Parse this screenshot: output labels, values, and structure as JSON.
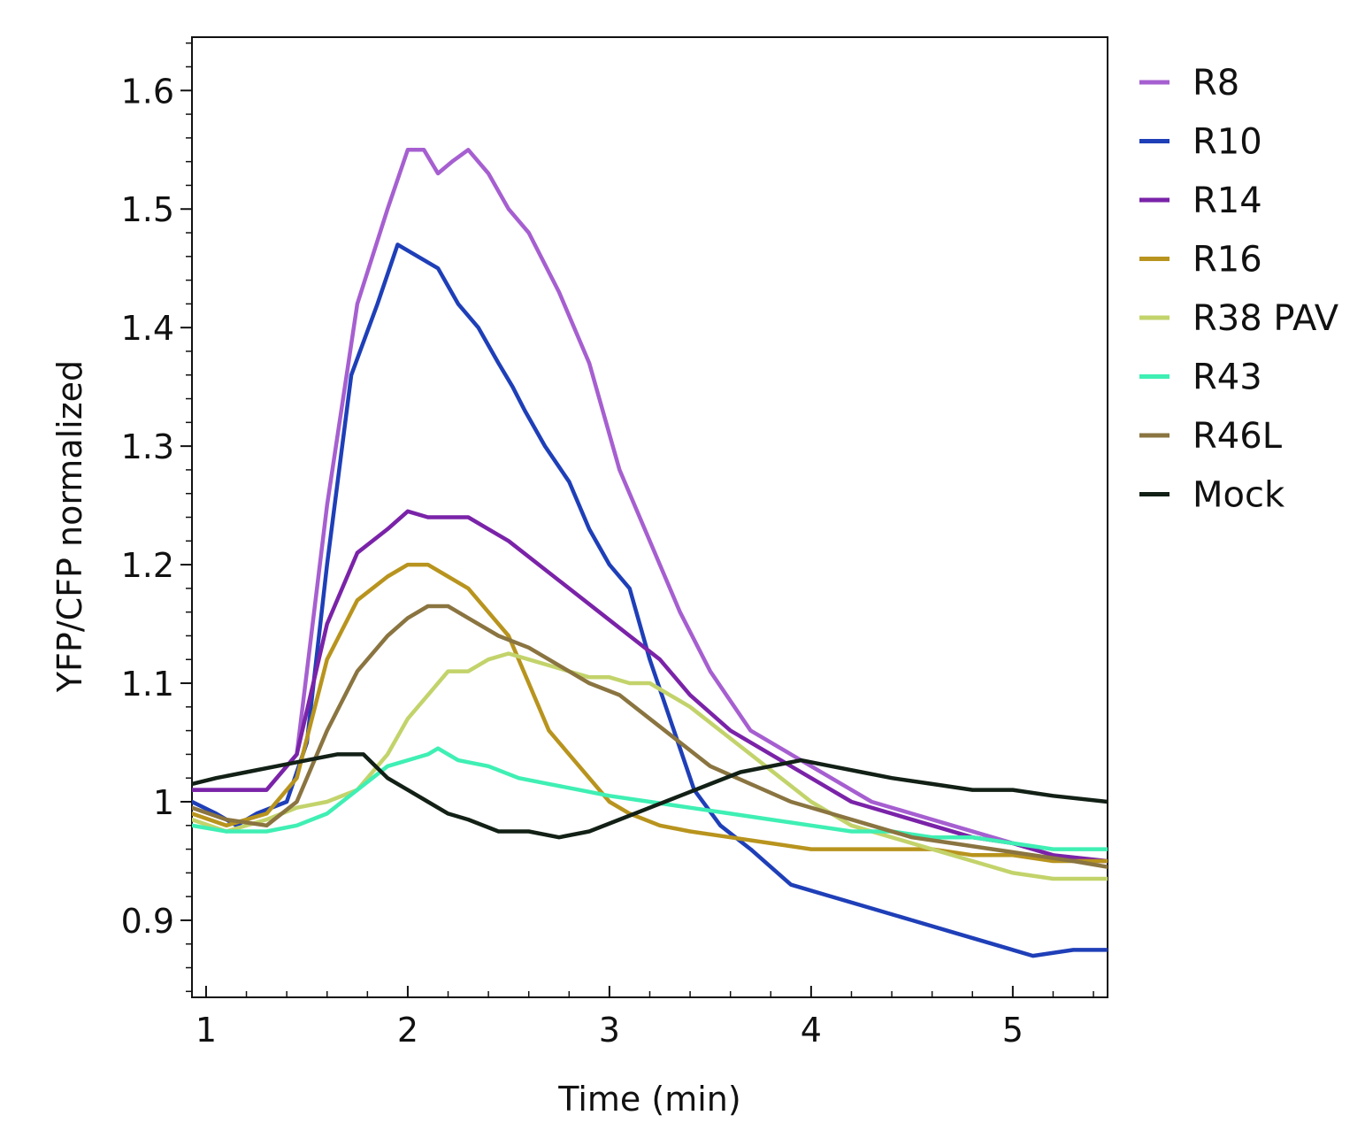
{
  "chart_data": {
    "type": "line",
    "title": "",
    "xlabel": "Time (min)",
    "ylabel": "YFP/CFP normalized",
    "xlim": [
      0.93,
      5.47
    ],
    "ylim": [
      0.835,
      1.645
    ],
    "x_ticks": [
      1,
      2,
      3,
      4,
      5
    ],
    "y_ticks": [
      0.9,
      1,
      1.1,
      1.2,
      1.3,
      1.4,
      1.5,
      1.6
    ],
    "x_tick_labels": [
      "1",
      "2",
      "3",
      "4",
      "5"
    ],
    "y_tick_labels": [
      "0.9",
      "1",
      "1.1",
      "1.2",
      "1.3",
      "1.4",
      "1.5",
      "1.6"
    ],
    "grid": false,
    "legend_position": "outside-right",
    "series": [
      {
        "name": "R8",
        "color": "#a65fd0",
        "x": [
          0.93,
          1.1,
          1.3,
          1.45,
          1.6,
          1.75,
          1.9,
          2.0,
          2.08,
          2.15,
          2.22,
          2.3,
          2.4,
          2.5,
          2.6,
          2.75,
          2.9,
          3.05,
          3.2,
          3.35,
          3.5,
          3.7,
          3.9,
          4.1,
          4.3,
          4.5,
          4.7,
          4.9,
          5.1,
          5.3,
          5.47
        ],
        "y": [
          1.01,
          1.01,
          1.01,
          1.04,
          1.25,
          1.42,
          1.5,
          1.55,
          1.55,
          1.53,
          1.54,
          1.55,
          1.53,
          1.5,
          1.48,
          1.43,
          1.37,
          1.28,
          1.22,
          1.16,
          1.11,
          1.06,
          1.04,
          1.02,
          1.0,
          0.99,
          0.98,
          0.97,
          0.96,
          0.95,
          0.95
        ]
      },
      {
        "name": "R10",
        "color": "#1f3fb8",
        "x": [
          0.93,
          1.05,
          1.15,
          1.25,
          1.4,
          1.5,
          1.6,
          1.72,
          1.85,
          1.95,
          2.05,
          2.15,
          2.25,
          2.35,
          2.45,
          2.52,
          2.58,
          2.68,
          2.8,
          2.9,
          3.0,
          3.1,
          3.2,
          3.3,
          3.42,
          3.55,
          3.7,
          3.9,
          4.1,
          4.3,
          4.5,
          4.7,
          4.9,
          5.1,
          5.3,
          5.47
        ],
        "y": [
          1.0,
          0.99,
          0.98,
          0.99,
          1.0,
          1.05,
          1.2,
          1.36,
          1.42,
          1.47,
          1.46,
          1.45,
          1.42,
          1.4,
          1.37,
          1.35,
          1.33,
          1.3,
          1.27,
          1.23,
          1.2,
          1.18,
          1.12,
          1.07,
          1.01,
          0.98,
          0.96,
          0.93,
          0.92,
          0.91,
          0.9,
          0.89,
          0.88,
          0.87,
          0.875,
          0.875
        ]
      },
      {
        "name": "R14",
        "color": "#7a23a8",
        "x": [
          0.93,
          1.1,
          1.3,
          1.45,
          1.6,
          1.75,
          1.9,
          2.0,
          2.1,
          2.2,
          2.3,
          2.4,
          2.5,
          2.65,
          2.8,
          2.95,
          3.1,
          3.25,
          3.4,
          3.6,
          3.8,
          4.0,
          4.2,
          4.4,
          4.6,
          4.8,
          5.0,
          5.2,
          5.47
        ],
        "y": [
          1.01,
          1.01,
          1.01,
          1.04,
          1.15,
          1.21,
          1.23,
          1.245,
          1.24,
          1.24,
          1.24,
          1.23,
          1.22,
          1.2,
          1.18,
          1.16,
          1.14,
          1.12,
          1.09,
          1.06,
          1.04,
          1.02,
          1.0,
          0.99,
          0.98,
          0.97,
          0.965,
          0.955,
          0.95
        ]
      },
      {
        "name": "R16",
        "color": "#b8941e",
        "x": [
          0.93,
          1.1,
          1.3,
          1.45,
          1.6,
          1.75,
          1.9,
          2.0,
          2.1,
          2.2,
          2.3,
          2.4,
          2.5,
          2.6,
          2.7,
          2.8,
          2.9,
          3.0,
          3.1,
          3.25,
          3.4,
          3.6,
          3.8,
          4.0,
          4.2,
          4.4,
          4.6,
          4.8,
          5.0,
          5.2,
          5.47
        ],
        "y": [
          0.99,
          0.98,
          0.99,
          1.02,
          1.12,
          1.17,
          1.19,
          1.2,
          1.2,
          1.19,
          1.18,
          1.16,
          1.14,
          1.1,
          1.06,
          1.04,
          1.02,
          1.0,
          0.99,
          0.98,
          0.975,
          0.97,
          0.965,
          0.96,
          0.96,
          0.96,
          0.96,
          0.955,
          0.955,
          0.95,
          0.95
        ]
      },
      {
        "name": "R38 PAV",
        "color": "#c3d36b",
        "x": [
          0.93,
          1.1,
          1.3,
          1.45,
          1.6,
          1.75,
          1.9,
          2.0,
          2.1,
          2.2,
          2.3,
          2.4,
          2.5,
          2.6,
          2.7,
          2.8,
          2.9,
          3.0,
          3.1,
          3.2,
          3.3,
          3.4,
          3.55,
          3.7,
          3.85,
          4.0,
          4.2,
          4.4,
          4.6,
          4.8,
          5.0,
          5.2,
          5.47
        ],
        "y": [
          0.985,
          0.975,
          0.985,
          0.995,
          1.0,
          1.01,
          1.04,
          1.07,
          1.09,
          1.11,
          1.11,
          1.12,
          1.125,
          1.12,
          1.115,
          1.11,
          1.105,
          1.105,
          1.1,
          1.1,
          1.09,
          1.08,
          1.06,
          1.04,
          1.02,
          1.0,
          0.98,
          0.97,
          0.96,
          0.95,
          0.94,
          0.935,
          0.935
        ]
      },
      {
        "name": "R43",
        "color": "#3fefb4",
        "x": [
          0.93,
          1.1,
          1.3,
          1.45,
          1.6,
          1.75,
          1.9,
          2.0,
          2.1,
          2.15,
          2.25,
          2.4,
          2.55,
          2.7,
          2.85,
          3.0,
          3.2,
          3.4,
          3.6,
          3.8,
          4.0,
          4.2,
          4.4,
          4.6,
          4.8,
          5.0,
          5.2,
          5.47
        ],
        "y": [
          0.98,
          0.975,
          0.975,
          0.98,
          0.99,
          1.01,
          1.03,
          1.035,
          1.04,
          1.045,
          1.035,
          1.03,
          1.02,
          1.015,
          1.01,
          1.005,
          1.0,
          0.995,
          0.99,
          0.985,
          0.98,
          0.975,
          0.975,
          0.97,
          0.97,
          0.965,
          0.96,
          0.96
        ]
      },
      {
        "name": "R46L",
        "color": "#8a7440",
        "x": [
          0.93,
          1.1,
          1.3,
          1.45,
          1.6,
          1.75,
          1.9,
          2.0,
          2.1,
          2.2,
          2.3,
          2.45,
          2.6,
          2.75,
          2.9,
          3.05,
          3.2,
          3.35,
          3.5,
          3.7,
          3.9,
          4.1,
          4.3,
          4.5,
          4.7,
          4.9,
          5.1,
          5.3,
          5.47
        ],
        "y": [
          0.995,
          0.985,
          0.98,
          1.0,
          1.06,
          1.11,
          1.14,
          1.155,
          1.165,
          1.165,
          1.155,
          1.14,
          1.13,
          1.115,
          1.1,
          1.09,
          1.07,
          1.05,
          1.03,
          1.015,
          1.0,
          0.99,
          0.98,
          0.97,
          0.965,
          0.96,
          0.955,
          0.95,
          0.945
        ]
      },
      {
        "name": "Mock",
        "color": "#122016",
        "x": [
          0.93,
          1.05,
          1.2,
          1.35,
          1.5,
          1.65,
          1.78,
          1.9,
          2.0,
          2.1,
          2.2,
          2.3,
          2.45,
          2.6,
          2.75,
          2.9,
          3.05,
          3.2,
          3.35,
          3.5,
          3.65,
          3.8,
          3.95,
          4.1,
          4.25,
          4.4,
          4.6,
          4.8,
          5.0,
          5.2,
          5.47
        ],
        "y": [
          1.015,
          1.02,
          1.025,
          1.03,
          1.035,
          1.04,
          1.04,
          1.02,
          1.01,
          1.0,
          0.99,
          0.985,
          0.975,
          0.975,
          0.97,
          0.975,
          0.985,
          0.995,
          1.005,
          1.015,
          1.025,
          1.03,
          1.035,
          1.03,
          1.025,
          1.02,
          1.015,
          1.01,
          1.01,
          1.005,
          1.0
        ]
      }
    ]
  }
}
